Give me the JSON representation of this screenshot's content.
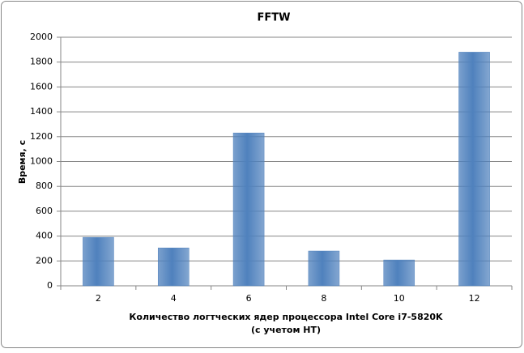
{
  "chart_data": {
    "type": "bar",
    "title": "FFTW",
    "ylabel": "Время, с",
    "xlabel": [
      "Количество логтческих ядер процессора Intel Core i7-5820K",
      "(с учетом НТ)"
    ],
    "categories": [
      "2",
      "4",
      "6",
      "8",
      "10",
      "12"
    ],
    "values": [
      390,
      305,
      1230,
      280,
      208,
      1880
    ],
    "color": "#4f81bd",
    "ylim": [
      0,
      2000
    ],
    "yticks": [
      0,
      200,
      400,
      600,
      800,
      1000,
      1200,
      1400,
      1600,
      1800,
      2000
    ],
    "grid": true
  }
}
